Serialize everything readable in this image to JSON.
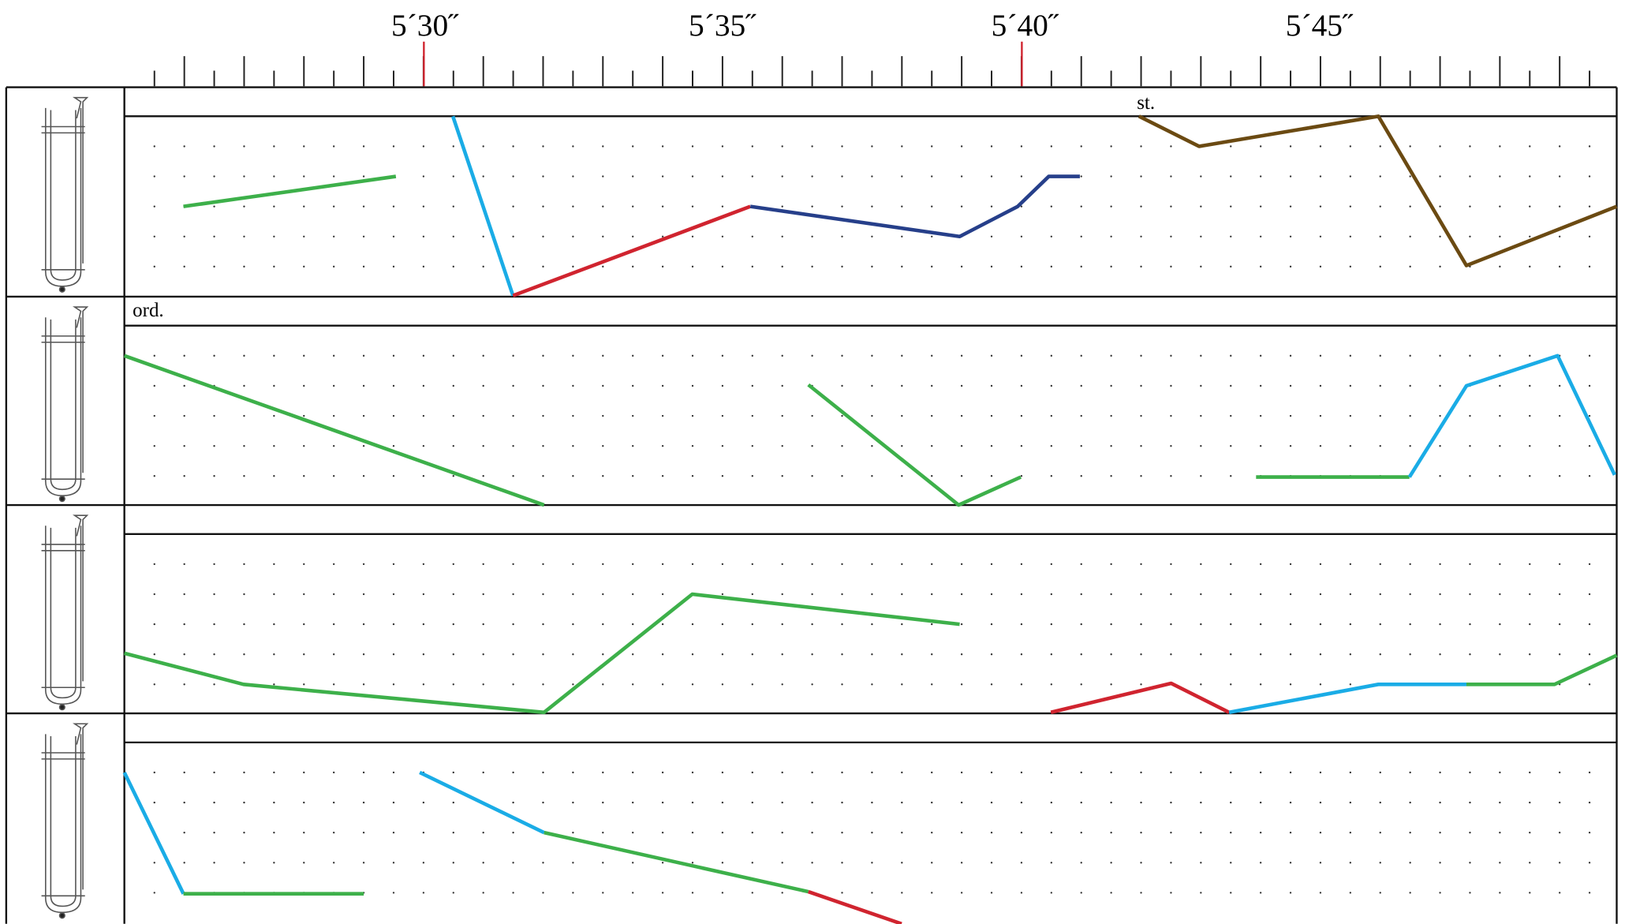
{
  "timeline": {
    "labels": [
      "5´30˝",
      "5´35˝",
      "5´40˝",
      "5´45˝"
    ]
  },
  "annotations": [
    "st.",
    "ord."
  ]
}
